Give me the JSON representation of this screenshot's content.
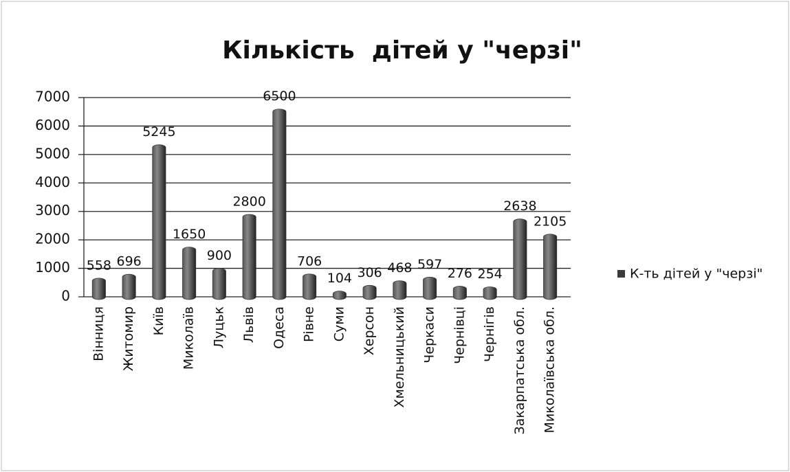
{
  "chart_data": {
    "type": "bar",
    "title": "Кількість  дітей у \"черзі\"",
    "categories": [
      "Вінниця",
      "Житомир",
      "Київ",
      "Миколаїв",
      "Луцьк",
      "Львів",
      "Одеса",
      "Рівне",
      "Суми",
      "Херсон",
      "Хмельницький",
      "Черкаси",
      "Чернівці",
      "Чернігів",
      "Закарпатська обл.",
      "Миколаївська обл."
    ],
    "series": [
      {
        "name": "К-ть дітей у \"черзі\"",
        "color": "#3a3a3a",
        "values": [
          558,
          696,
          5245,
          1650,
          900,
          2800,
          6500,
          706,
          104,
          306,
          468,
          597,
          276,
          254,
          2638,
          2105
        ]
      }
    ],
    "ylim": [
      0,
      7000
    ],
    "yticks": [
      0,
      1000,
      2000,
      3000,
      4000,
      5000,
      6000,
      7000
    ],
    "grid": true,
    "legend": "right"
  }
}
